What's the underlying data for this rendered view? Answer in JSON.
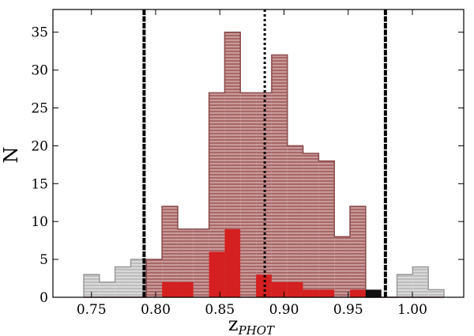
{
  "chart_data": {
    "type": "histogram",
    "xlabel": "z",
    "xlabel_subscript": "PHOT",
    "ylabel": "N",
    "xlim": [
      0.72,
      1.04
    ],
    "ylim": [
      0,
      38
    ],
    "xticks": [
      0.75,
      0.8,
      0.85,
      0.9,
      0.95,
      1.0
    ],
    "xtick_labels": [
      "0.75",
      "0.80",
      "0.85",
      "0.90",
      "0.95",
      "1.00"
    ],
    "yticks": [
      0,
      5,
      10,
      15,
      20,
      25,
      30,
      35
    ],
    "ytick_labels": [
      "0",
      "5",
      "10",
      "15",
      "20",
      "25",
      "30",
      "35"
    ],
    "bin_edges": [
      0.744,
      0.7562,
      0.7684,
      0.7806,
      0.7928,
      0.805,
      0.8172,
      0.8294,
      0.8416,
      0.8538,
      0.866,
      0.8782,
      0.8904,
      0.9026,
      0.9148,
      0.927,
      0.9392,
      0.9514,
      0.9636,
      0.9758,
      0.988,
      1.0002,
      1.0124,
      1.0246
    ],
    "series": [
      {
        "style": "hatched-gray",
        "color": "#c8c8c8",
        "counts": [
          3,
          2,
          4,
          5,
          0,
          0,
          0,
          0,
          0,
          0,
          0,
          0,
          0,
          0,
          0,
          0,
          0,
          0,
          0,
          0,
          3,
          4,
          1
        ]
      },
      {
        "style": "hatched-brown",
        "color": "#b07070",
        "counts": [
          0,
          0,
          0,
          0,
          5,
          12,
          9,
          9,
          27,
          35,
          27,
          27,
          32,
          20,
          19,
          18,
          8,
          12,
          0,
          0,
          0,
          0,
          0
        ]
      },
      {
        "style": "solid-red",
        "color": "#d42020",
        "counts": [
          0,
          0,
          0,
          0,
          0,
          2,
          2,
          0,
          6,
          9,
          0,
          3,
          2,
          2,
          1,
          1,
          0,
          1,
          1,
          0,
          0,
          0,
          0
        ]
      },
      {
        "style": "solid-black",
        "color": "#111111",
        "counts": [
          0,
          0,
          0,
          0,
          0,
          0,
          0,
          0,
          0,
          0,
          0,
          0,
          0,
          0,
          0,
          0,
          0,
          0,
          1,
          0,
          0,
          0,
          0
        ]
      }
    ],
    "vlines": [
      {
        "x": 0.791,
        "style": "dashed-thick",
        "color": "#000000"
      },
      {
        "x": 0.885,
        "style": "dotted",
        "color": "#000000"
      },
      {
        "x": 0.979,
        "style": "dashed-thick",
        "color": "#000000"
      }
    ],
    "grid": false,
    "legend": "none"
  }
}
